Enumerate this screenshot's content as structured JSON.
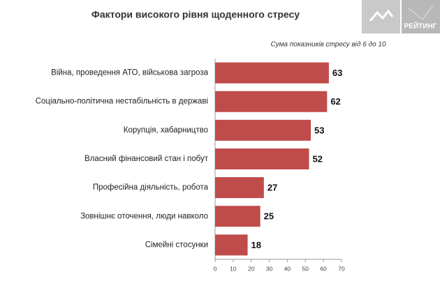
{
  "chart_data": {
    "type": "barh",
    "title": "Фактори високого рівня щоденного стресу",
    "subtitle": "Сума показників стресу від 6 до 10",
    "categories": [
      "Війна, проведення АТО, військова загроза",
      "Соціально-політична нестабільність в державі",
      "Корупція, хабарництво",
      "Власний фінансовий стан і побут",
      "Професійна діяльність, робота",
      "Зовнішнє оточення, люди навколо",
      "Сімейні стосунки"
    ],
    "values": [
      63,
      62,
      53,
      52,
      27,
      25,
      18
    ],
    "color": "#bf4b4a",
    "xlim": [
      0,
      70
    ],
    "xticks": [
      0,
      10,
      20,
      30,
      40,
      50,
      60,
      70
    ]
  },
  "branding": {
    "logo": "РЕЙТИНГ"
  }
}
